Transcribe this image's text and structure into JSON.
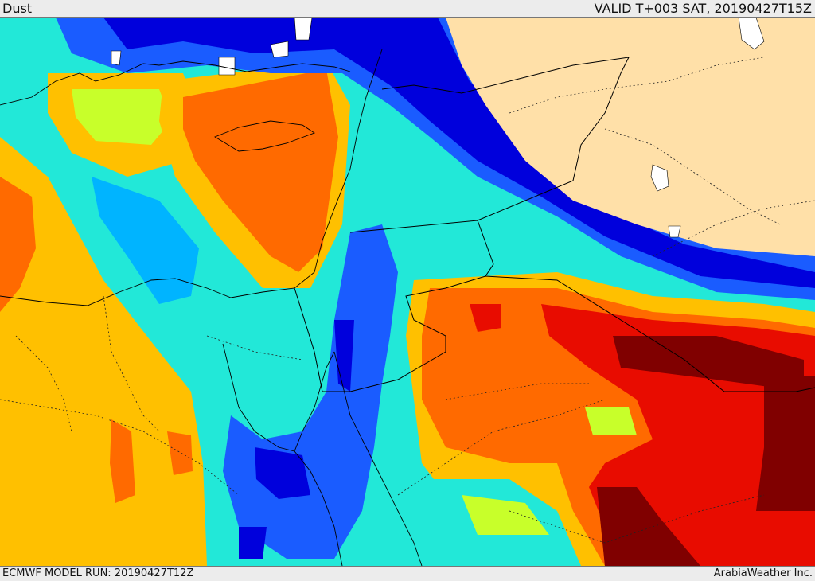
{
  "header": {
    "title": "Dust",
    "valid_time": "VALID T+003 SAT, 20190427T15Z"
  },
  "footer": {
    "model_run": "ECMWF MODEL RUN: 20190427T12Z",
    "credit": "ArabiaWeather Inc."
  },
  "map": {
    "field": "dust concentration",
    "colors": {
      "lowest": "#0000dc",
      "low": "#1a5cff",
      "low_mid": "#00b4ff",
      "mid": "#22e8d8",
      "mid_high": "#c8ff2a",
      "high": "#ffc000",
      "higher": "#ff6a00",
      "very_high": "#e80c00",
      "extreme": "#800000",
      "land_no_data": "#ffe0a8",
      "water_hole": "#ffffff"
    }
  }
}
